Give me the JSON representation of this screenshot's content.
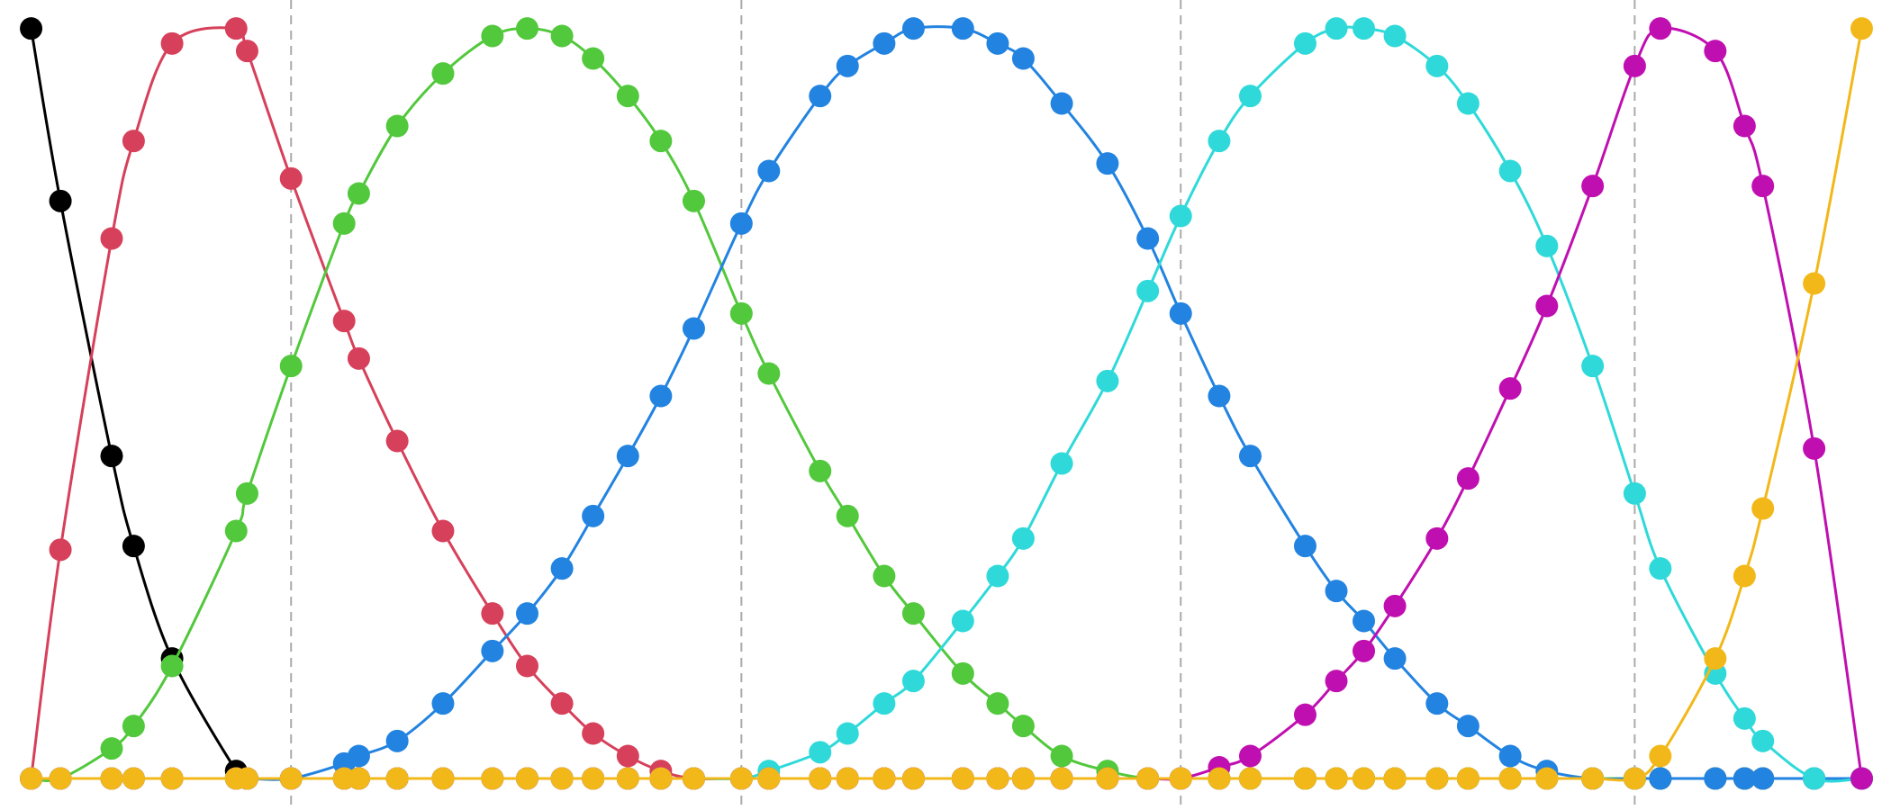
{
  "chart_data": {
    "type": "line",
    "xlim": [
      -0.017,
      1.016
    ],
    "ylim": [
      -0.042,
      1.038
    ],
    "knots": [
      0.142,
      0.388,
      0.628,
      0.876
    ],
    "x": [
      0,
      0.016,
      0.044,
      0.056,
      0.077,
      0.112,
      0.118,
      0.142,
      0.171,
      0.179,
      0.2,
      0.225,
      0.252,
      0.271,
      0.29,
      0.307,
      0.326,
      0.344,
      0.362,
      0.388,
      0.403,
      0.431,
      0.446,
      0.466,
      0.482,
      0.509,
      0.528,
      0.542,
      0.563,
      0.588,
      0.61,
      0.628,
      0.649,
      0.666,
      0.696,
      0.713,
      0.728,
      0.745,
      0.768,
      0.785,
      0.808,
      0.828,
      0.853,
      0.876,
      0.89,
      0.92,
      0.936,
      0.946,
      0.974,
      1
    ],
    "series": [
      {
        "color": "#000000",
        "values": [
          1,
          0.77,
          0.43,
          0.31,
          0.16,
          0.01,
          0,
          0,
          0,
          0,
          0,
          0,
          0,
          0,
          0,
          0,
          0,
          0,
          0,
          0,
          0,
          0,
          0,
          0,
          0,
          0,
          0,
          0,
          0,
          0,
          0,
          0,
          0,
          0,
          0,
          0,
          0,
          0,
          0,
          0,
          0,
          0,
          0,
          0,
          0,
          0,
          0,
          0,
          0,
          0
        ]
      },
      {
        "color": "#d6405a",
        "values": [
          0,
          0.305,
          0.72,
          0.85,
          0.98,
          1,
          0.97,
          0.8,
          0.61,
          0.56,
          0.45,
          0.33,
          0.22,
          0.15,
          0.1,
          0.06,
          0.03,
          0.01,
          0,
          0,
          0,
          0,
          0,
          0,
          0,
          0,
          0,
          0,
          0,
          0,
          0,
          0,
          0,
          0,
          0,
          0,
          0,
          0,
          0,
          0,
          0,
          0,
          0,
          0,
          0,
          0,
          0,
          0,
          0,
          0
        ]
      },
      {
        "color": "#52c83c",
        "values": [
          0,
          0,
          0.04,
          0.07,
          0.15,
          0.33,
          0.38,
          0.55,
          0.74,
          0.78,
          0.87,
          0.94,
          0.99,
          1,
          0.99,
          0.96,
          0.91,
          0.85,
          0.77,
          0.62,
          0.54,
          0.41,
          0.35,
          0.27,
          0.22,
          0.14,
          0.1,
          0.07,
          0.03,
          0.01,
          0,
          0,
          0,
          0,
          0,
          0,
          0,
          0,
          0,
          0,
          0,
          0,
          0,
          0,
          0,
          0,
          0,
          0,
          0,
          0
        ]
      },
      {
        "color": "#2283e0",
        "values": [
          0,
          0,
          0,
          0,
          0,
          0,
          0,
          0,
          0.02,
          0.03,
          0.05,
          0.1,
          0.17,
          0.22,
          0.28,
          0.35,
          0.43,
          0.51,
          0.6,
          0.74,
          0.81,
          0.91,
          0.95,
          0.98,
          1,
          1,
          0.98,
          0.96,
          0.9,
          0.82,
          0.72,
          0.62,
          0.51,
          0.43,
          0.31,
          0.25,
          0.21,
          0.16,
          0.1,
          0.07,
          0.03,
          0.01,
          0,
          0,
          0,
          0,
          0,
          0,
          0,
          0
        ]
      },
      {
        "color": "#2fd9d9",
        "values": [
          0,
          0,
          0,
          0,
          0,
          0,
          0,
          0,
          0,
          0,
          0,
          0,
          0,
          0,
          0,
          0,
          0,
          0,
          0,
          0,
          0.01,
          0.035,
          0.06,
          0.1,
          0.13,
          0.21,
          0.27,
          0.32,
          0.42,
          0.53,
          0.65,
          0.75,
          0.85,
          0.91,
          0.98,
          1,
          1,
          0.99,
          0.95,
          0.9,
          0.81,
          0.71,
          0.55,
          0.38,
          0.28,
          0.14,
          0.08,
          0.05,
          0,
          0
        ]
      },
      {
        "color": "#c00fb0",
        "values": [
          0,
          0,
          0,
          0,
          0,
          0,
          0,
          0,
          0,
          0,
          0,
          0,
          0,
          0,
          0,
          0,
          0,
          0,
          0,
          0,
          0,
          0,
          0,
          0,
          0,
          0,
          0,
          0,
          0,
          0,
          0,
          0,
          0.015,
          0.03,
          0.085,
          0.13,
          0.17,
          0.23,
          0.32,
          0.4,
          0.52,
          0.63,
          0.79,
          0.95,
          1,
          0.97,
          0.87,
          0.79,
          0.44,
          0
        ]
      },
      {
        "color": "#f2b81a",
        "values": [
          0,
          0,
          0,
          0,
          0,
          0,
          0,
          0,
          0,
          0,
          0,
          0,
          0,
          0,
          0,
          0,
          0,
          0,
          0,
          0,
          0,
          0,
          0,
          0,
          0,
          0,
          0,
          0,
          0,
          0,
          0,
          0,
          0,
          0,
          0,
          0,
          0,
          0,
          0,
          0,
          0,
          0,
          0,
          0,
          0.03,
          0.16,
          0.27,
          0.36,
          0.66,
          1
        ]
      }
    ]
  }
}
